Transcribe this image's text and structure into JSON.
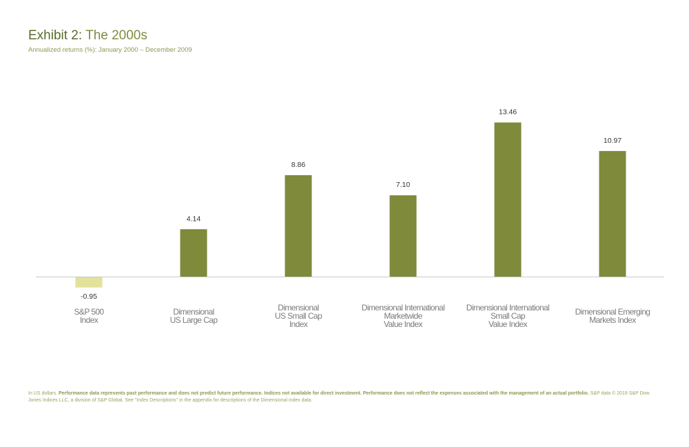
{
  "header": {
    "title_prefix": "Exhibit 2:",
    "title_rest": " The 2000s",
    "subtitle": "Annualized returns (%): January 2000 – December 2009"
  },
  "colors": {
    "positive_bar": "#7f8a3b",
    "negative_bar": "#e2e29a",
    "axis": "#c8c8c8",
    "category_label": "#7a7a7a",
    "value_label": "#333333"
  },
  "chart_data": {
    "type": "bar",
    "categories": [
      [
        "S&P 500",
        "Index"
      ],
      [
        "Dimensional",
        "US Large Cap"
      ],
      [
        "Dimensional",
        "US Small Cap",
        "Index"
      ],
      [
        "Dimensional International",
        "Marketwide",
        "Value Index"
      ],
      [
        "Dimensional International",
        "Small Cap",
        "Value Index"
      ],
      [
        "Dimensional Emerging",
        "Markets Index"
      ]
    ],
    "values": [
      -0.95,
      4.14,
      8.86,
      7.1,
      13.46,
      10.97
    ],
    "value_labels": [
      "-0.95",
      "4.14",
      "8.86",
      "7.10",
      "13.46",
      "10.97"
    ],
    "title": "Exhibit 2: The 2000s",
    "subtitle": "Annualized returns (%): January 2000 – December 2009",
    "xlabel": "",
    "ylabel": "",
    "ylim": [
      -1.5,
      14
    ],
    "grid": false,
    "legend": "none"
  },
  "footnote": {
    "part1": "In US dollars. ",
    "bold": "Performance data represents past performance and does not predict future performance. Indices not available for direct investment. Performance  does not reflect the expenses associated with the management of an actual portfolio.",
    "part2": " S&P data © 2019 S&P Dow Jones Indices LLC, a division of S&P Global. See \"Index Descriptions\" in the appendix for descriptions of the Dimensional index data."
  }
}
